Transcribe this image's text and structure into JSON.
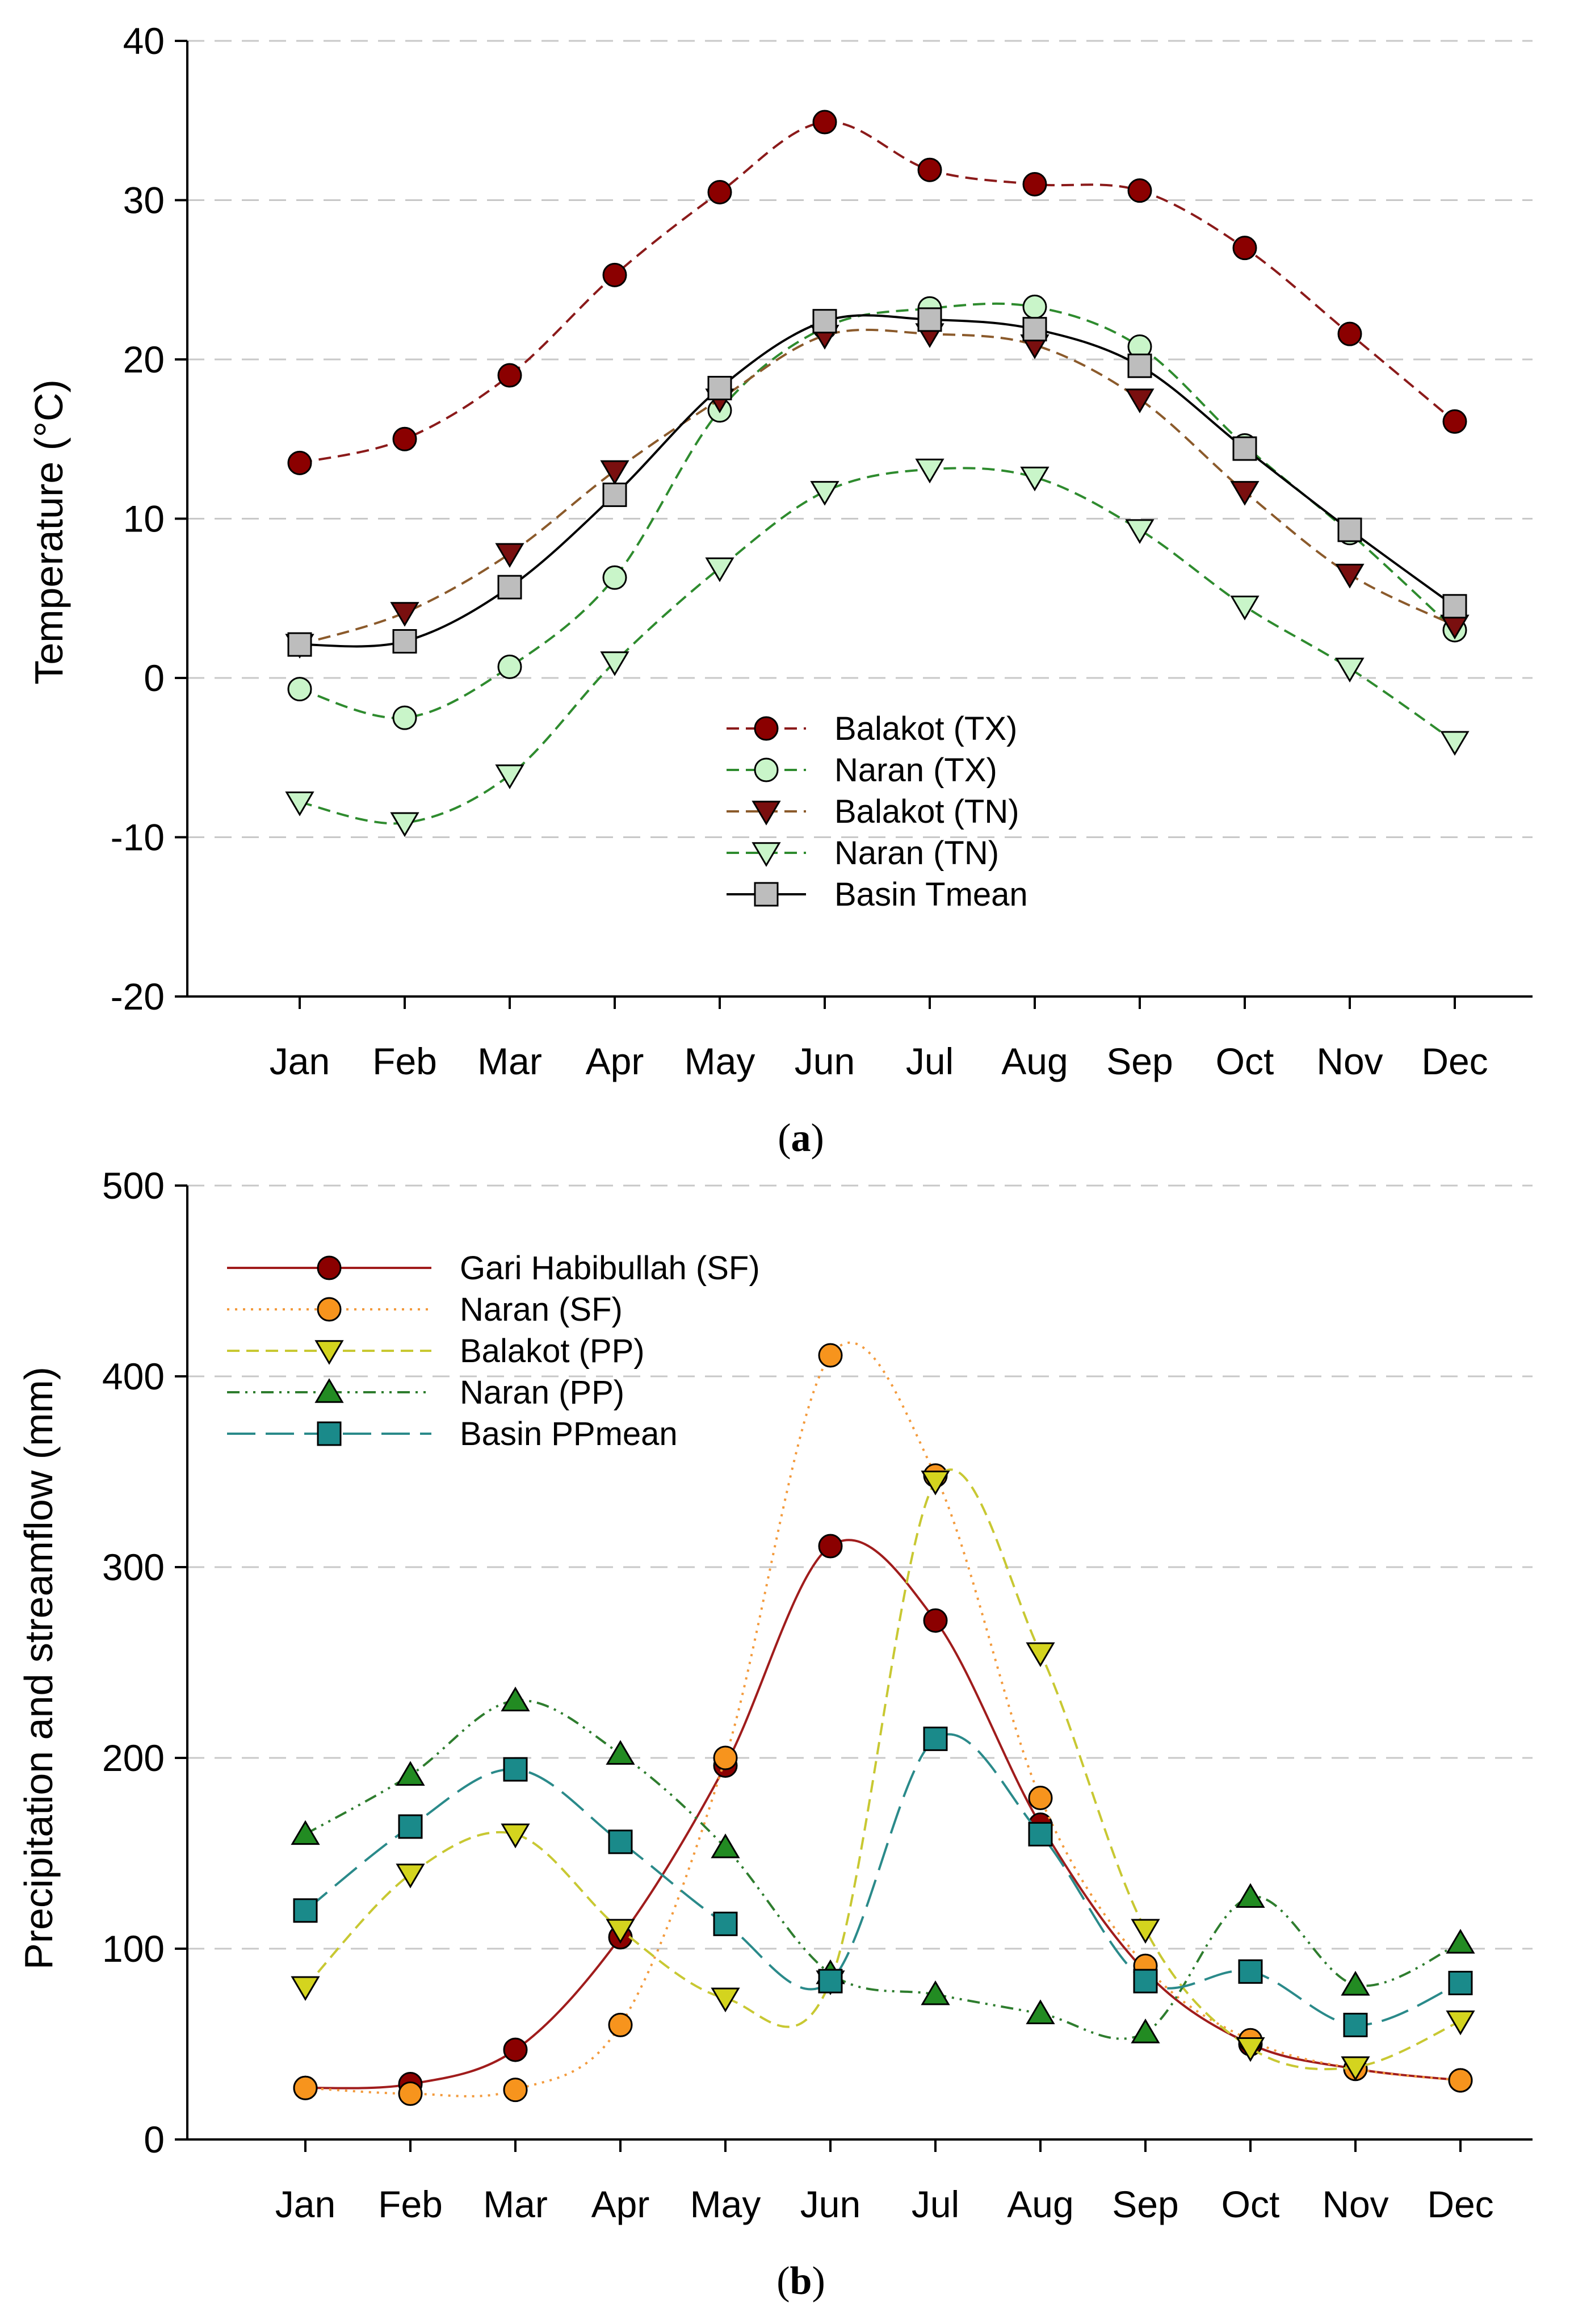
{
  "figure": {
    "panel_a_caption": "a",
    "panel_b_caption": "b"
  },
  "chart_data": [
    {
      "type": "line",
      "panel": "a",
      "title": "",
      "xlabel": "",
      "ylabel": "Temperature (°C)",
      "ylim": [
        -20,
        40
      ],
      "yticks": [
        -20,
        -10,
        0,
        10,
        20,
        30,
        40
      ],
      "grid": "horizontal dashed",
      "legend_position": "center",
      "categories": [
        "Jan",
        "Feb",
        "Mar",
        "Apr",
        "May",
        "Jun",
        "Jul",
        "Aug",
        "Sep",
        "Oct",
        "Nov",
        "Dec"
      ],
      "series": [
        {
          "name": "Balakot (TX)",
          "values": [
            13.5,
            15.0,
            19.0,
            25.3,
            30.5,
            34.9,
            31.9,
            31.0,
            30.6,
            27.0,
            21.6,
            16.1
          ],
          "color": "#8b1a1a",
          "marker": "circle",
          "marker_fill": "#8b0000",
          "line_style": "dashed"
        },
        {
          "name": "Naran (TX)",
          "values": [
            -0.7,
            -2.5,
            0.7,
            6.3,
            16.8,
            22.0,
            23.2,
            23.3,
            20.8,
            14.6,
            9.1,
            3.0
          ],
          "color": "#2e8b2e",
          "marker": "circle",
          "marker_fill": "#c9f5c9",
          "line_style": "dashed"
        },
        {
          "name": "Balakot (TN)",
          "values": [
            2.1,
            4.1,
            7.8,
            13.0,
            17.5,
            21.5,
            21.6,
            20.9,
            17.5,
            11.7,
            6.5,
            3.3
          ],
          "color": "#8b5a2b",
          "marker": "triangle-down",
          "marker_fill": "#7a0f0f",
          "line_style": "dashed"
        },
        {
          "name": "Naran (TN)",
          "values": [
            -7.8,
            -9.1,
            -6.1,
            1.0,
            6.9,
            11.7,
            13.1,
            12.6,
            9.3,
            4.5,
            0.6,
            -4.0
          ],
          "color": "#2e8b2e",
          "marker": "triangle-down",
          "marker_fill": "#c9f5c9",
          "line_style": "dashed"
        },
        {
          "name": "Basin Tmean",
          "values": [
            2.1,
            2.3,
            5.7,
            11.5,
            18.2,
            22.4,
            22.5,
            21.9,
            19.6,
            14.4,
            9.3,
            4.5
          ],
          "color": "#000000",
          "marker": "square",
          "marker_fill": "#bdbdbd",
          "line_style": "solid"
        }
      ]
    },
    {
      "type": "line",
      "panel": "b",
      "title": "",
      "xlabel": "",
      "ylabel": "Precipitation and streamflow (mm)",
      "ylim": [
        0,
        500
      ],
      "yticks": [
        0,
        100,
        200,
        300,
        400,
        500
      ],
      "grid": "horizontal dashed",
      "legend_position": "top-left",
      "categories": [
        "Jan",
        "Feb",
        "Mar",
        "Apr",
        "May",
        "Jun",
        "Jul",
        "Aug",
        "Sep",
        "Oct",
        "Nov",
        "Dec"
      ],
      "series": [
        {
          "name": "Gari Habibullah (SF)",
          "values": [
            27,
            29,
            47,
            106,
            196,
            311,
            272,
            165,
            88,
            50,
            37,
            31
          ],
          "color": "#a01c1c",
          "marker": "circle",
          "marker_fill": "#8b0000",
          "line_style": "solid"
        },
        {
          "name": "Naran (SF)",
          "values": [
            27,
            24,
            26,
            60,
            200,
            411,
            348,
            179,
            91,
            52,
            37,
            31
          ],
          "color": "#f39a3c",
          "marker": "circle",
          "marker_fill": "#f7941d",
          "line_style": "dotted"
        },
        {
          "name": "Balakot (PP)",
          "values": [
            80,
            139,
            160,
            110,
            74,
            83,
            345,
            255,
            110,
            48,
            38,
            62
          ],
          "color": "#c8c832",
          "marker": "triangle-down",
          "marker_fill": "#d4d41e",
          "line_style": "dashed"
        },
        {
          "name": "Naran (PP)",
          "values": [
            160,
            191,
            230,
            202,
            153,
            87,
            76,
            66,
            56,
            127,
            81,
            103
          ],
          "color": "#2e7d2e",
          "marker": "triangle-up",
          "marker_fill": "#228b22",
          "line_style": "dashdotdot"
        },
        {
          "name": "Basin PPmean",
          "values": [
            120,
            164,
            194,
            156,
            113,
            83,
            210,
            160,
            83,
            88,
            60,
            82
          ],
          "color": "#2a8a8a",
          "marker": "square",
          "marker_fill": "#1a8a8a",
          "line_style": "longdash"
        }
      ]
    }
  ]
}
